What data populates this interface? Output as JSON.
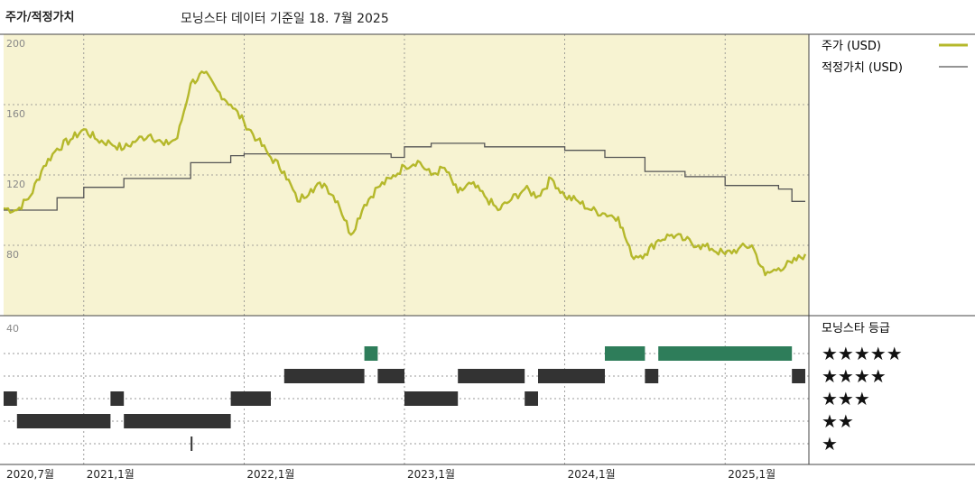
{
  "header": {
    "title": "주가/적정가치",
    "subtitle": "모닝스타 데이터 기준일 18. 7월 2025"
  },
  "legend": {
    "price_label": "주가 (USD)",
    "fair_label": "적정가치 (USD)",
    "price_color": "#b5b82b",
    "fair_color": "#555555"
  },
  "rating_panel": {
    "title": "모닝스타 등급",
    "rows": [
      "★★★★★",
      "★★★★",
      "★★★",
      "★★",
      "★"
    ],
    "scale_label": "40",
    "colors": {
      "five_star": "#2e7d5a",
      "other": "#333333"
    }
  },
  "chart_data": {
    "type": "line",
    "x_start": "2020-07",
    "x_end": "2025-07",
    "x_tick_labels": [
      "2020,7월",
      "2021,1월",
      "2022,1월",
      "2023,1월",
      "2024,1월",
      "2025,1월"
    ],
    "x_tick_positions": [
      "2020-07",
      "2021-01",
      "2022-01",
      "2023-01",
      "2024-01",
      "2025-01"
    ],
    "ylim": [
      40,
      200
    ],
    "y_ticks": [
      200,
      160,
      120,
      80
    ],
    "grid": true,
    "series": [
      {
        "name": "주가 (USD)",
        "points": [
          [
            "2020-07",
            101
          ],
          [
            "2020-08",
            100
          ],
          [
            "2020-09",
            108
          ],
          [
            "2020-10",
            125
          ],
          [
            "2020-11",
            135
          ],
          [
            "2020-12",
            140
          ],
          [
            "2021-01",
            146
          ],
          [
            "2021-02",
            140
          ],
          [
            "2021-03",
            138
          ],
          [
            "2021-04",
            135
          ],
          [
            "2021-05",
            140
          ],
          [
            "2021-06",
            143
          ],
          [
            "2021-07",
            137
          ],
          [
            "2021-08",
            141
          ],
          [
            "2021-09",
            172
          ],
          [
            "2021-10",
            178
          ],
          [
            "2021-11",
            168
          ],
          [
            "2021-12",
            160
          ],
          [
            "2022-01",
            150
          ],
          [
            "2022-02",
            140
          ],
          [
            "2022-03",
            130
          ],
          [
            "2022-04",
            122
          ],
          [
            "2022-05",
            105
          ],
          [
            "2022-06",
            112
          ],
          [
            "2022-07",
            115
          ],
          [
            "2022-08",
            105
          ],
          [
            "2022-09",
            86
          ],
          [
            "2022-10",
            103
          ],
          [
            "2022-11",
            113
          ],
          [
            "2022-12",
            118
          ],
          [
            "2023-01",
            125
          ],
          [
            "2023-02",
            128
          ],
          [
            "2023-03",
            120
          ],
          [
            "2023-04",
            124
          ],
          [
            "2023-05",
            110
          ],
          [
            "2023-06",
            115
          ],
          [
            "2023-07",
            108
          ],
          [
            "2023-08",
            100
          ],
          [
            "2023-09",
            106
          ],
          [
            "2023-10",
            112
          ],
          [
            "2023-11",
            108
          ],
          [
            "2023-12",
            118
          ],
          [
            "2024-01",
            108
          ],
          [
            "2024-02",
            105
          ],
          [
            "2024-03",
            100
          ],
          [
            "2024-04",
            98
          ],
          [
            "2024-05",
            96
          ],
          [
            "2024-06",
            74
          ],
          [
            "2024-07",
            75
          ],
          [
            "2024-08",
            83
          ],
          [
            "2024-09",
            86
          ],
          [
            "2024-10",
            83
          ],
          [
            "2024-11",
            80
          ],
          [
            "2024-12",
            78
          ],
          [
            "2025-01",
            75
          ],
          [
            "2025-02",
            78
          ],
          [
            "2025-03",
            80
          ],
          [
            "2025-04",
            63
          ],
          [
            "2025-05",
            67
          ],
          [
            "2025-06",
            70
          ],
          [
            "2025-07",
            75
          ]
        ]
      },
      {
        "name": "적정가치 (USD)",
        "steps": [
          [
            "2020-07",
            100
          ],
          [
            "2020-11",
            107
          ],
          [
            "2021-01",
            113
          ],
          [
            "2021-04",
            118
          ],
          [
            "2021-09",
            127
          ],
          [
            "2021-12",
            131
          ],
          [
            "2022-01",
            132
          ],
          [
            "2022-12",
            130
          ],
          [
            "2023-01",
            136
          ],
          [
            "2023-03",
            138
          ],
          [
            "2023-07",
            136
          ],
          [
            "2024-01",
            134
          ],
          [
            "2024-04",
            130
          ],
          [
            "2024-07",
            122
          ],
          [
            "2024-10",
            119
          ],
          [
            "2025-01",
            114
          ],
          [
            "2025-05",
            112
          ],
          [
            "2025-06",
            105
          ],
          [
            "2025-07",
            105
          ]
        ]
      }
    ],
    "ratings": [
      {
        "stars": 5,
        "segments": [
          [
            "2022-10",
            "2022-11"
          ],
          [
            "2024-04",
            "2024-07"
          ],
          [
            "2024-08",
            "2025-06"
          ]
        ]
      },
      {
        "stars": 4,
        "segments": [
          [
            "2022-04",
            "2022-10"
          ],
          [
            "2022-11",
            "2023-01"
          ],
          [
            "2023-05",
            "2023-10"
          ],
          [
            "2023-11",
            "2024-04"
          ],
          [
            "2024-07",
            "2024-08"
          ],
          [
            "2025-06",
            "2025-07"
          ]
        ]
      },
      {
        "stars": 3,
        "segments": [
          [
            "2020-07",
            "2020-08"
          ],
          [
            "2021-03",
            "2021-04"
          ],
          [
            "2021-12",
            "2022-03"
          ],
          [
            "2023-01",
            "2023-05"
          ],
          [
            "2023-10",
            "2023-11"
          ]
        ]
      },
      {
        "stars": 2,
        "segments": [
          [
            "2020-08",
            "2021-03"
          ],
          [
            "2021-04",
            "2021-12"
          ]
        ]
      },
      {
        "stars": 1,
        "segments": [
          [
            "2021-09",
            "2021-10"
          ]
        ]
      }
    ]
  }
}
